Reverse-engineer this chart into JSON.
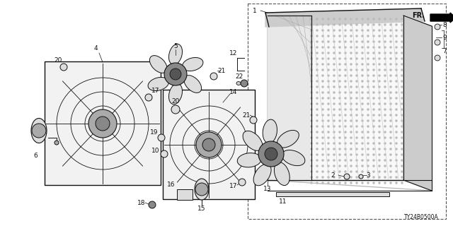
{
  "bg_color": "#ffffff",
  "diagram_code": "TY24B0500A",
  "fig_width": 6.4,
  "fig_height": 3.2,
  "dpi": 100,
  "label_fontsize": 6.5,
  "text_color": "#111111",
  "line_color": "#111111"
}
